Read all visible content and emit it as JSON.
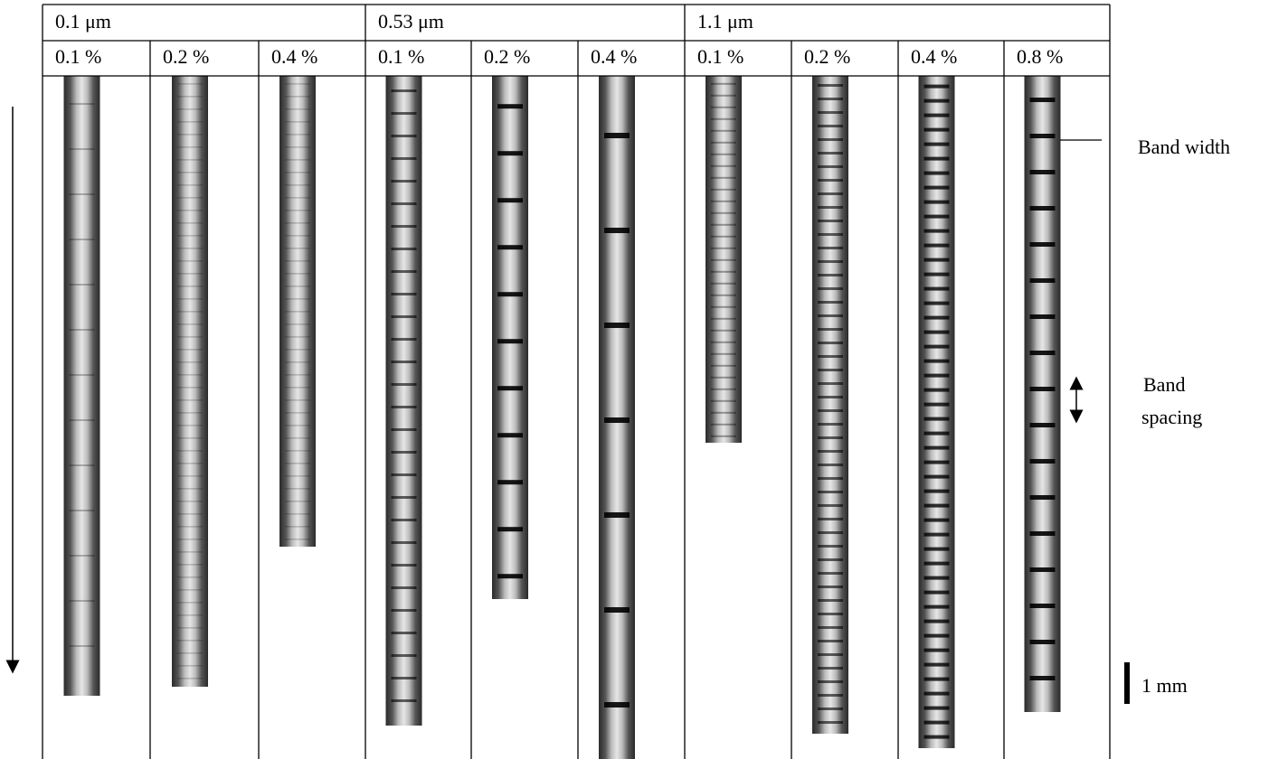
{
  "table": {
    "groups": [
      {
        "label": "0.1 μm",
        "columns": [
          "0.1 %",
          "0.2 %",
          "0.4 %"
        ]
      },
      {
        "label": "0.53 μm",
        "columns": [
          "0.1 %",
          "0.2 %",
          "0.4 %"
        ]
      },
      {
        "label": "1.1 μm",
        "columns": [
          "0.1 %",
          "0.2 %",
          "0.4 %",
          "0.8 %"
        ]
      }
    ]
  },
  "annotations": {
    "band_width": "Band width",
    "band_spacing": [
      "Band",
      "spacing"
    ],
    "scale": "1 mm"
  }
}
